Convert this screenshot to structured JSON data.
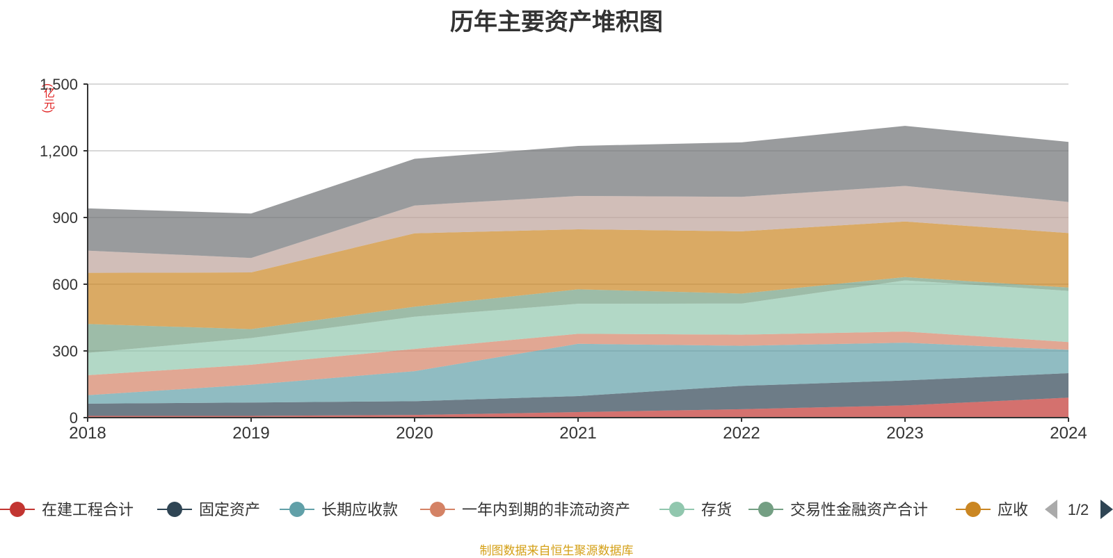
{
  "chart_data": {
    "type": "area",
    "title": "历年主要资产堆积图",
    "unit_label": "(亿元)",
    "categories": [
      "2018",
      "2019",
      "2020",
      "2021",
      "2022",
      "2023",
      "2024"
    ],
    "ylim": [
      0,
      1500
    ],
    "yticks": [
      0,
      300,
      600,
      900,
      1200,
      1500
    ],
    "ytick_labels": [
      "0",
      "300",
      "600",
      "900",
      "1,200",
      "1,500"
    ],
    "grid": true,
    "stacked": true,
    "series": [
      {
        "name": "在建工程合计",
        "color": "#c23531",
        "values": [
          8,
          8,
          12,
          25,
          38,
          55,
          90
        ]
      },
      {
        "name": "固定资产",
        "color": "#2f4554",
        "values": [
          55,
          60,
          62,
          72,
          105,
          112,
          110
        ]
      },
      {
        "name": "长期应收款",
        "color": "#61a0a8",
        "values": [
          38,
          80,
          135,
          235,
          180,
          170,
          105
        ]
      },
      {
        "name": "一年内到期的非流动资产",
        "color": "#d48265",
        "values": [
          90,
          90,
          100,
          45,
          50,
          50,
          35
        ]
      },
      {
        "name": "存货",
        "color": "#91c7ae",
        "values": [
          100,
          120,
          145,
          135,
          140,
          230,
          230
        ]
      },
      {
        "name": "交易性金融资产合计",
        "color": "#749f83",
        "values": [
          130,
          40,
          45,
          65,
          45,
          15,
          15
        ]
      },
      {
        "name": "应收",
        "color": "#ca8622",
        "values": [
          230,
          255,
          330,
          270,
          280,
          250,
          245
        ]
      },
      {
        "name": "",
        "color": "#bda29a",
        "values": [
          100,
          65,
          125,
          150,
          155,
          160,
          140
        ]
      },
      {
        "name": "",
        "color": "#6e7074",
        "values": [
          190,
          200,
          210,
          225,
          245,
          270,
          270
        ]
      }
    ],
    "legend_position": "bottom",
    "legend_page": "1/2"
  },
  "source_note": "制图数据来自恒生聚源数据库"
}
